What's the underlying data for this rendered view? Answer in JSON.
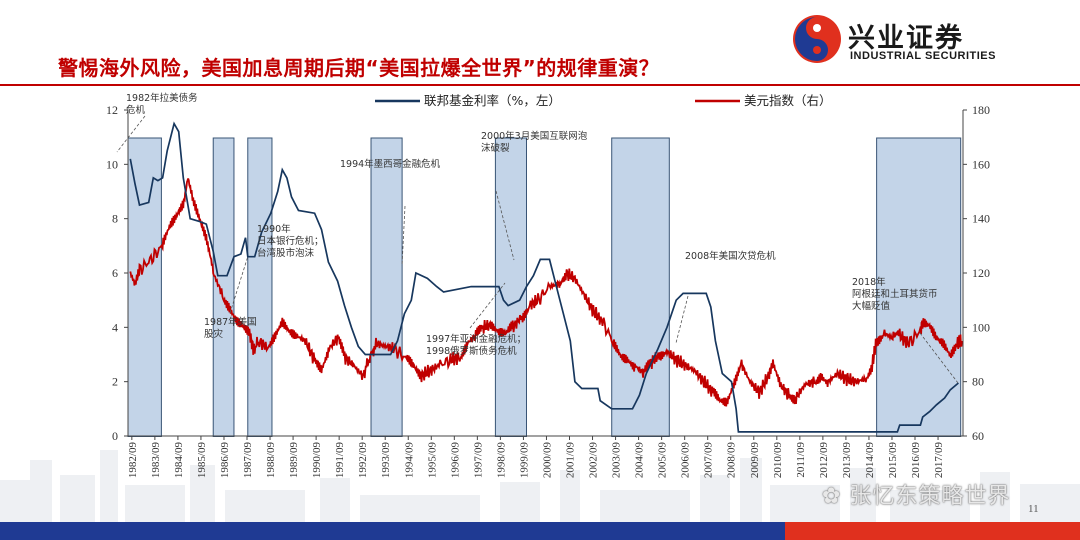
{
  "header": {
    "title": "警惕海外风险，美国加息周期后期“美国拉爆全世界”的规律重演？",
    "logo_cn": "兴业证券",
    "logo_en": "INDUSTRIAL SECURITIES"
  },
  "footer": {
    "page_number": "11",
    "watermark": "张忆东策略世界"
  },
  "colors": {
    "fed_line": "#17375e",
    "dxy_line": "#c00000",
    "band_fill": "#b9cde5",
    "band_stroke": "#17375e",
    "title": "#c00000",
    "footer_blue": "#1f3a93",
    "footer_red": "#e0301e"
  },
  "chart_data": {
    "type": "line",
    "legend": {
      "fed": "联邦基金利率（%，左）",
      "dxy": "美元指数（右）",
      "placement": "top"
    },
    "y_left": {
      "ticks": [
        "0",
        "2",
        "4",
        "6",
        "8",
        "10",
        "12"
      ],
      "range": [
        0,
        12
      ]
    },
    "y_right": {
      "ticks": [
        "60",
        "80",
        "100",
        "120",
        "140",
        "160",
        "180"
      ],
      "range": [
        60,
        180
      ]
    },
    "x_ticks": [
      "1982/09",
      "1983/09",
      "1984/09",
      "1985/09",
      "1986/09",
      "1987/09",
      "1988/09",
      "1989/09",
      "1990/09",
      "1991/09",
      "1992/09",
      "1993/09",
      "1994/09",
      "1995/09",
      "1996/09",
      "1997/09",
      "1998/09",
      "1999/09",
      "2000/09",
      "2001/09",
      "2002/09",
      "2003/09",
      "2004/09",
      "2005/09",
      "2006/09",
      "2007/09",
      "2008/09",
      "2009/09",
      "2010/09",
      "2011/09",
      "2012/09",
      "2013/09",
      "2014/09",
      "2015/09",
      "2016/09",
      "2017/09"
    ],
    "x_range": [
      1982.5,
      2018.75
    ],
    "shaded_periods": [
      {
        "start": 1982.5,
        "end": 1983.95
      },
      {
        "start": 1986.2,
        "end": 1987.1
      },
      {
        "start": 1987.7,
        "end": 1988.75
      },
      {
        "start": 1993.05,
        "end": 1994.4
      },
      {
        "start": 1998.45,
        "end": 1999.8
      },
      {
        "start": 2003.5,
        "end": 2006.0
      },
      {
        "start": 2015.0,
        "end": 2018.65
      }
    ],
    "series": [
      {
        "name": "联邦基金利率（%，左）",
        "axis": "left",
        "points": [
          [
            1982.6,
            10.2
          ],
          [
            1982.8,
            9.3
          ],
          [
            1983.0,
            8.5
          ],
          [
            1983.4,
            8.6
          ],
          [
            1983.6,
            9.5
          ],
          [
            1983.8,
            9.4
          ],
          [
            1984.0,
            9.5
          ],
          [
            1984.2,
            10.5
          ],
          [
            1984.5,
            11.5
          ],
          [
            1984.7,
            11.2
          ],
          [
            1984.9,
            9.5
          ],
          [
            1985.2,
            8.0
          ],
          [
            1985.6,
            7.9
          ],
          [
            1985.9,
            7.8
          ],
          [
            1986.2,
            6.8
          ],
          [
            1986.4,
            5.9
          ],
          [
            1986.8,
            5.9
          ],
          [
            1987.1,
            6.6
          ],
          [
            1987.4,
            6.7
          ],
          [
            1987.6,
            7.3
          ],
          [
            1987.7,
            6.6
          ],
          [
            1988.0,
            6.6
          ],
          [
            1988.3,
            7.5
          ],
          [
            1988.7,
            8.2
          ],
          [
            1989.0,
            9.0
          ],
          [
            1989.2,
            9.8
          ],
          [
            1989.4,
            9.5
          ],
          [
            1989.6,
            8.8
          ],
          [
            1989.9,
            8.3
          ],
          [
            1990.6,
            8.2
          ],
          [
            1990.9,
            7.6
          ],
          [
            1991.2,
            6.4
          ],
          [
            1991.6,
            5.7
          ],
          [
            1991.9,
            4.8
          ],
          [
            1992.2,
            4.0
          ],
          [
            1992.5,
            3.3
          ],
          [
            1992.8,
            3.0
          ],
          [
            1993.9,
            3.0
          ],
          [
            1994.2,
            3.5
          ],
          [
            1994.5,
            4.5
          ],
          [
            1994.8,
            5.0
          ],
          [
            1995.0,
            6.0
          ],
          [
            1995.5,
            5.8
          ],
          [
            1995.9,
            5.5
          ],
          [
            1996.2,
            5.3
          ],
          [
            1997.4,
            5.5
          ],
          [
            1998.6,
            5.5
          ],
          [
            1998.8,
            5.0
          ],
          [
            1999.0,
            4.8
          ],
          [
            1999.5,
            5.0
          ],
          [
            1999.8,
            5.5
          ],
          [
            2000.1,
            5.9
          ],
          [
            2000.4,
            6.5
          ],
          [
            2000.8,
            6.5
          ],
          [
            2001.1,
            5.5
          ],
          [
            2001.4,
            4.5
          ],
          [
            2001.7,
            3.5
          ],
          [
            2001.9,
            2.0
          ],
          [
            2002.2,
            1.75
          ],
          [
            2002.9,
            1.75
          ],
          [
            2003.0,
            1.3
          ],
          [
            2003.5,
            1.0
          ],
          [
            2004.4,
            1.0
          ],
          [
            2004.7,
            1.5
          ],
          [
            2005.0,
            2.3
          ],
          [
            2005.5,
            3.2
          ],
          [
            2005.9,
            4.0
          ],
          [
            2006.3,
            5.0
          ],
          [
            2006.6,
            5.25
          ],
          [
            2007.6,
            5.25
          ],
          [
            2007.8,
            4.75
          ],
          [
            2008.0,
            3.5
          ],
          [
            2008.3,
            2.3
          ],
          [
            2008.7,
            2.0
          ],
          [
            2008.9,
            1.0
          ],
          [
            2009.0,
            0.15
          ],
          [
            2015.9,
            0.15
          ],
          [
            2016.0,
            0.4
          ],
          [
            2016.9,
            0.4
          ],
          [
            2017.0,
            0.7
          ],
          [
            2017.3,
            0.9
          ],
          [
            2017.6,
            1.15
          ],
          [
            2017.95,
            1.4
          ],
          [
            2018.2,
            1.7
          ],
          [
            2018.55,
            1.95
          ]
        ]
      },
      {
        "name": "美元指数（右）",
        "axis": "right",
        "points": [
          [
            1982.6,
            120
          ],
          [
            1982.8,
            116
          ],
          [
            1983.0,
            121
          ],
          [
            1983.5,
            125
          ],
          [
            1984.0,
            130
          ],
          [
            1984.3,
            136
          ],
          [
            1984.6,
            140
          ],
          [
            1984.9,
            145
          ],
          [
            1985.1,
            155
          ],
          [
            1985.3,
            148
          ],
          [
            1985.6,
            140
          ],
          [
            1985.9,
            132
          ],
          [
            1986.2,
            120
          ],
          [
            1986.6,
            112
          ],
          [
            1986.9,
            108
          ],
          [
            1987.2,
            103
          ],
          [
            1987.5,
            100
          ],
          [
            1987.8,
            97
          ],
          [
            1987.95,
            92
          ],
          [
            1988.2,
            95
          ],
          [
            1988.6,
            92
          ],
          [
            1988.9,
            96
          ],
          [
            1989.2,
            101
          ],
          [
            1989.5,
            98
          ],
          [
            1989.8,
            97
          ],
          [
            1990.2,
            95
          ],
          [
            1990.6,
            88
          ],
          [
            1990.9,
            85
          ],
          [
            1991.2,
            92
          ],
          [
            1991.6,
            96
          ],
          [
            1991.9,
            89
          ],
          [
            1992.3,
            86
          ],
          [
            1992.7,
            82
          ],
          [
            1992.95,
            88
          ],
          [
            1993.3,
            94
          ],
          [
            1993.7,
            93
          ],
          [
            1994.1,
            92
          ],
          [
            1994.6,
            88
          ],
          [
            1994.9,
            85
          ],
          [
            1995.2,
            82
          ],
          [
            1995.6,
            84
          ],
          [
            1996.0,
            86
          ],
          [
            1996.5,
            88
          ],
          [
            1996.9,
            89
          ],
          [
            1997.2,
            94
          ],
          [
            1997.6,
            97
          ],
          [
            1997.9,
            100
          ],
          [
            1998.3,
            101
          ],
          [
            1998.6,
            98
          ],
          [
            1998.9,
            97
          ],
          [
            1999.2,
            100
          ],
          [
            1999.6,
            104
          ],
          [
            1999.9,
            108
          ],
          [
            2000.3,
            110
          ],
          [
            2000.8,
            115
          ],
          [
            2001.2,
            116
          ],
          [
            2001.5,
            120
          ],
          [
            2001.9,
            118
          ],
          [
            2002.3,
            112
          ],
          [
            2002.7,
            106
          ],
          [
            2003.1,
            102
          ],
          [
            2003.6,
            94
          ],
          [
            2003.9,
            90
          ],
          [
            2004.2,
            89
          ],
          [
            2004.5,
            86
          ],
          [
            2004.9,
            83
          ],
          [
            2005.2,
            87
          ],
          [
            2005.6,
            90
          ],
          [
            2005.9,
            91
          ],
          [
            2006.3,
            88
          ],
          [
            2006.7,
            86
          ],
          [
            2007.1,
            84
          ],
          [
            2007.5,
            80
          ],
          [
            2007.9,
            76
          ],
          [
            2008.2,
            73
          ],
          [
            2008.5,
            73
          ],
          [
            2008.8,
            80
          ],
          [
            2009.1,
            87
          ],
          [
            2009.5,
            80
          ],
          [
            2009.9,
            76
          ],
          [
            2010.3,
            82
          ],
          [
            2010.5,
            87
          ],
          [
            2010.8,
            79
          ],
          [
            2011.2,
            75
          ],
          [
            2011.5,
            74
          ],
          [
            2011.9,
            79
          ],
          [
            2012.3,
            80
          ],
          [
            2012.6,
            83
          ],
          [
            2012.9,
            80
          ],
          [
            2013.3,
            83
          ],
          [
            2013.7,
            81
          ],
          [
            2014.1,
            80
          ],
          [
            2014.5,
            81
          ],
          [
            2014.8,
            86
          ],
          [
            2015.0,
            95
          ],
          [
            2015.3,
            98
          ],
          [
            2015.7,
            96
          ],
          [
            2016.0,
            97
          ],
          [
            2016.4,
            94
          ],
          [
            2016.9,
            99
          ],
          [
            2017.0,
            102
          ],
          [
            2017.3,
            100
          ],
          [
            2017.6,
            95
          ],
          [
            2017.9,
            93
          ],
          [
            2018.2,
            89
          ],
          [
            2018.5,
            94
          ],
          [
            2018.7,
            95
          ]
        ]
      }
    ],
    "annotations": [
      {
        "lines": [
          "1982年拉美债务",
          "危机"
        ]
      },
      {
        "lines": [
          "1987年美国",
          "股灾"
        ]
      },
      {
        "lines": [
          "1990年",
          "日本银行危机；",
          "台湾股市泡沫"
        ]
      },
      {
        "lines": [
          "1994年墨西哥金融危机"
        ]
      },
      {
        "lines": [
          "1997年亚洲金融危机；",
          "1998俄罗斯债务危机"
        ]
      },
      {
        "lines": [
          "2000年3月美国互联网泡",
          "沫破裂"
        ]
      },
      {
        "lines": [
          "2008年美国次贷危机"
        ]
      },
      {
        "lines": [
          "2018年",
          "阿根廷和土耳其货币",
          "大幅贬值"
        ]
      }
    ]
  }
}
